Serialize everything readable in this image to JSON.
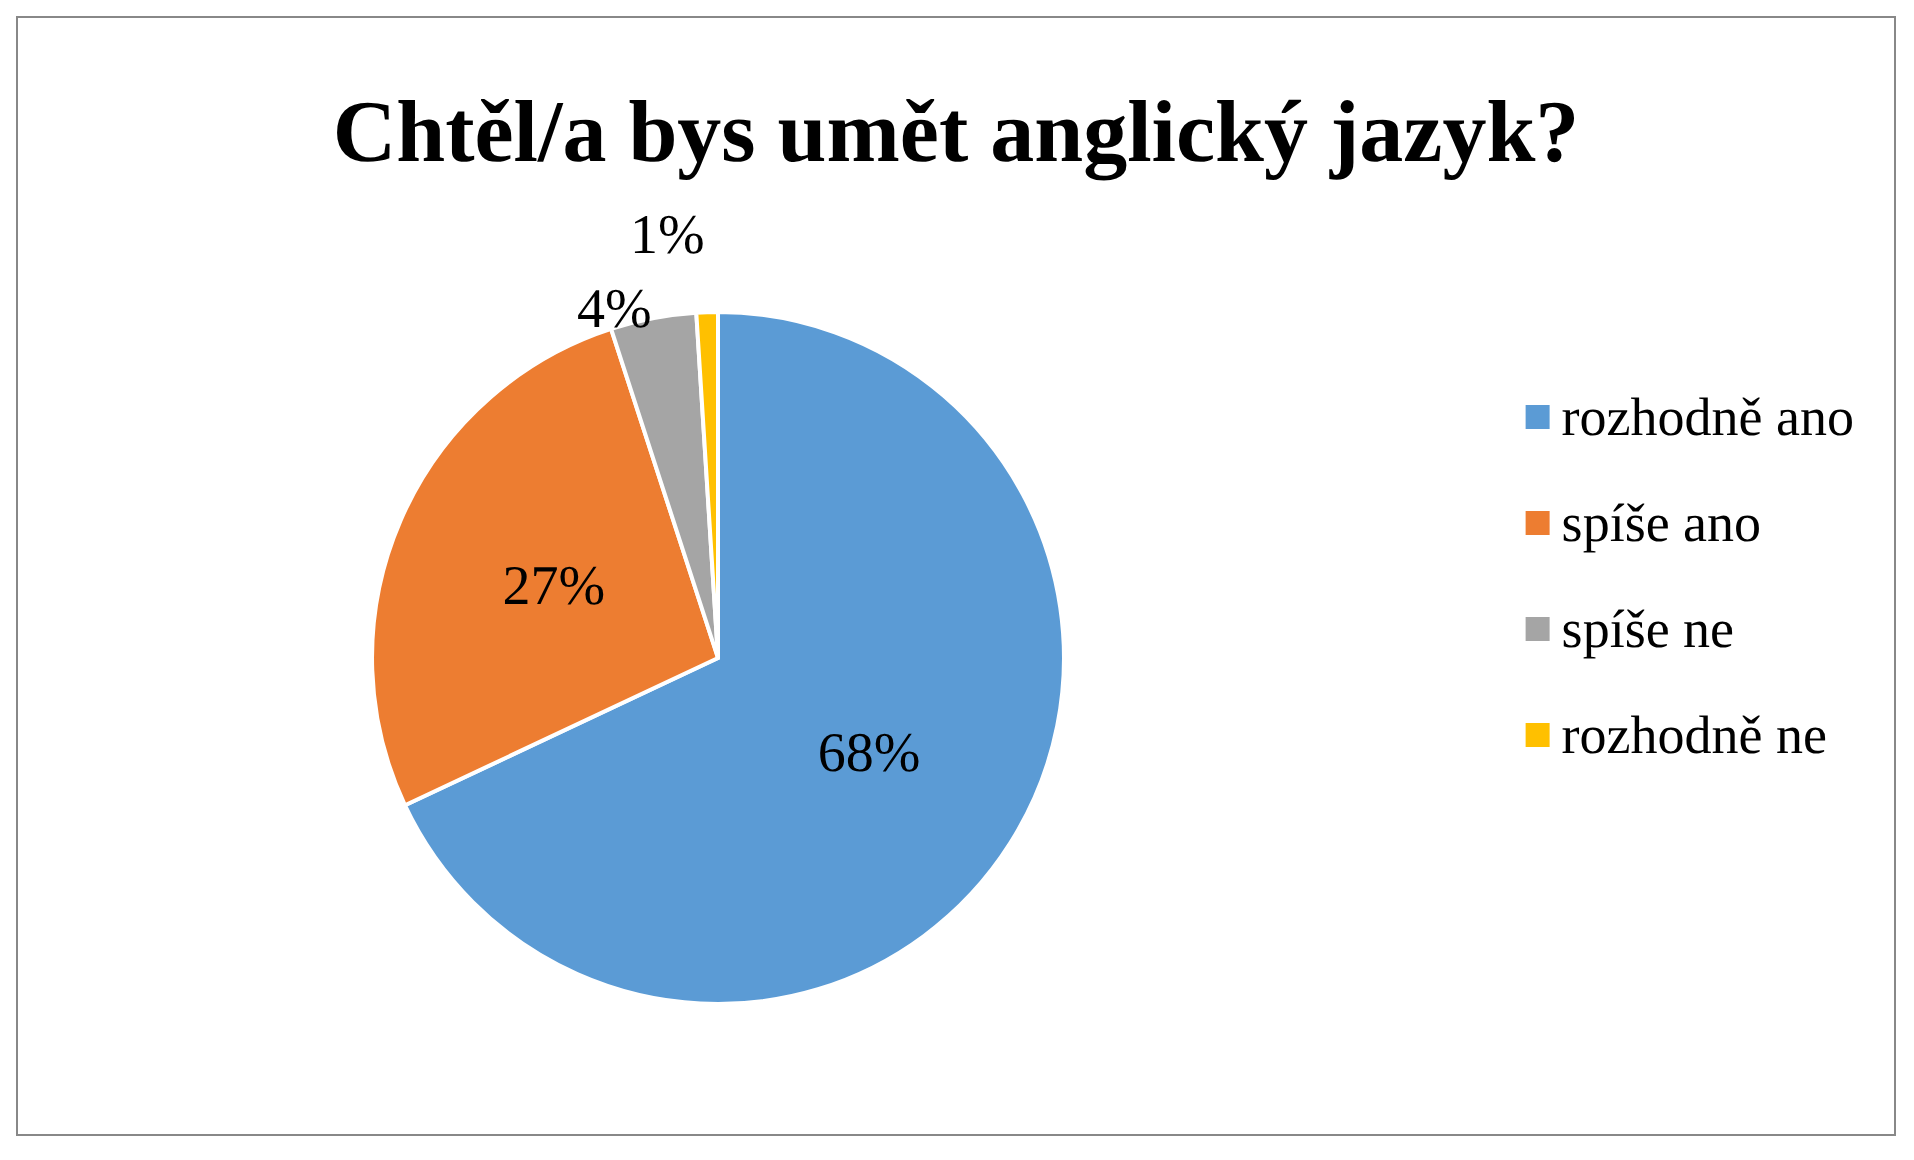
{
  "chart_data": {
    "type": "pie",
    "title": "Chtěl/a bys umět anglický jazyk?",
    "categories": [
      "rozhodně ano",
      "spíše ano",
      "spíše ne",
      "rozhodně ne"
    ],
    "values": [
      68,
      27,
      4,
      1
    ],
    "colors": [
      "#5b9bd5",
      "#ed7d31",
      "#a5a5a5",
      "#ffc000"
    ],
    "value_labels": [
      "68%",
      "27%",
      "4%",
      "1%"
    ],
    "legend": "right"
  }
}
